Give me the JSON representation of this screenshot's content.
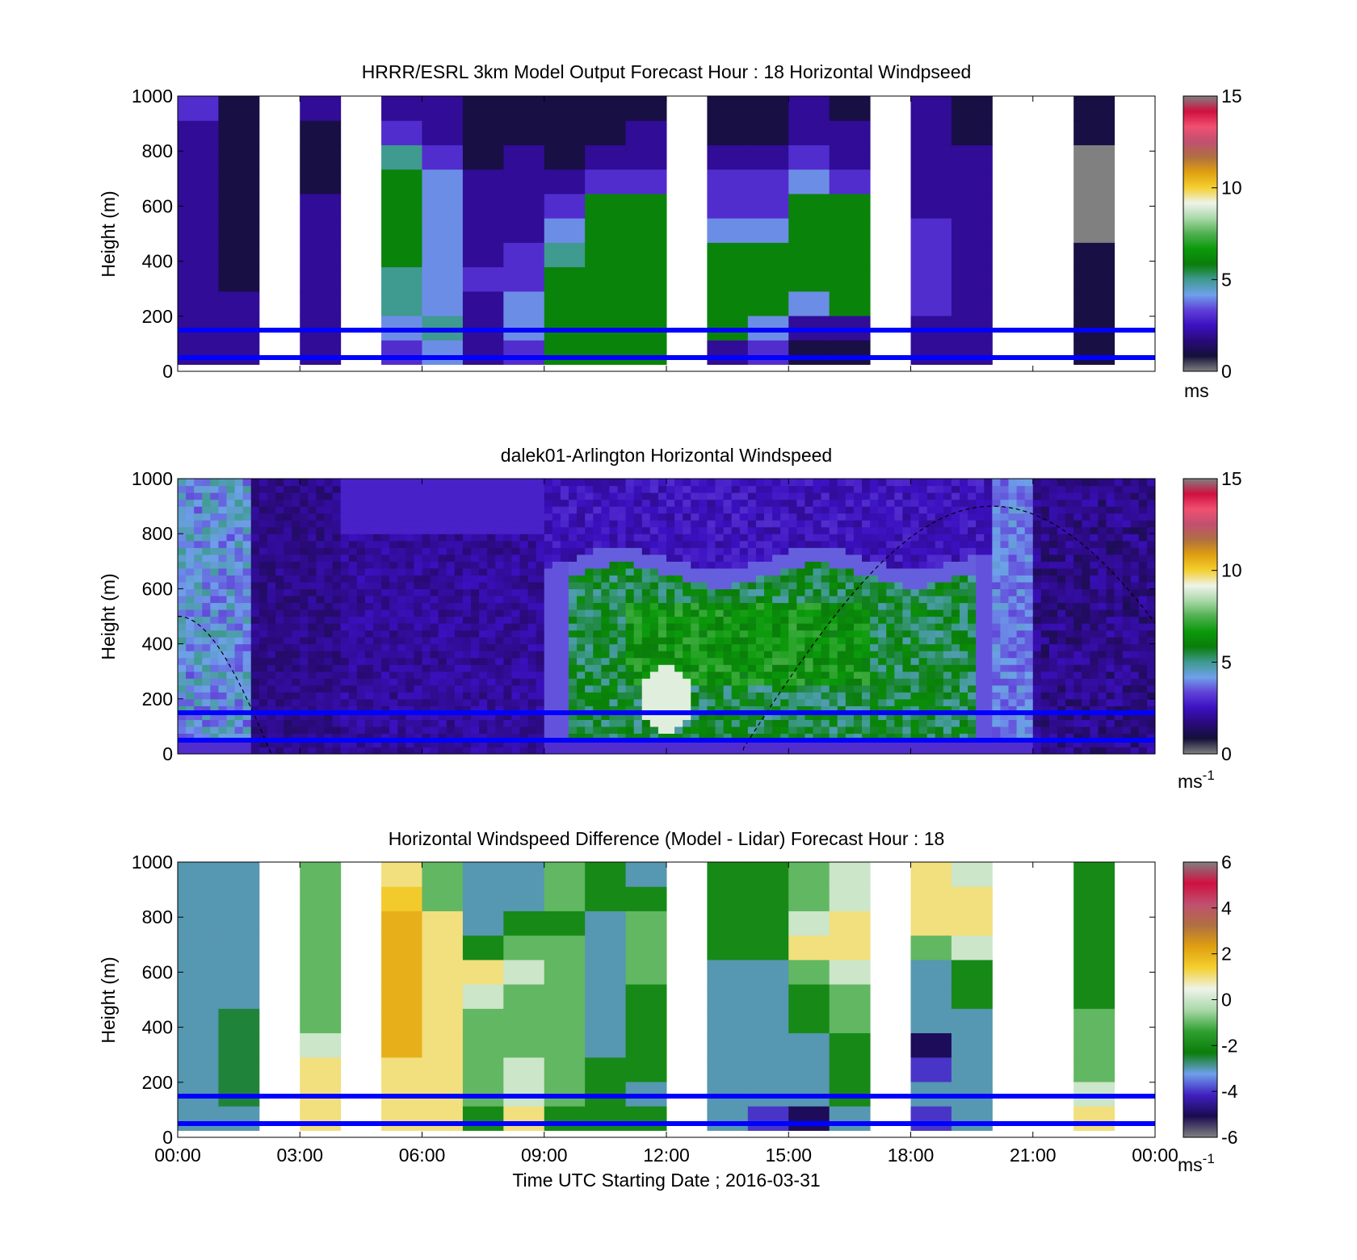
{
  "colors": {
    "wind_colormap": [
      "#808080",
      "#131038",
      "#2a0a7a",
      "#3b10c0",
      "#6040d8",
      "#6fa0ea",
      "#3f9a90",
      "#0a7d0a",
      "#0b9a0b",
      "#50b050",
      "#a8d8a8",
      "#eef3ea",
      "#f4d030",
      "#e0a010",
      "#b07040",
      "#c05070",
      "#f05070",
      "#d01040",
      "#808080"
    ],
    "diff_colormap": [
      "#808080",
      "#1a0a50",
      "#4020c0",
      "#6fa0ea",
      "#0a7d0a",
      "#30a030",
      "#a8d8a8",
      "#eef3ea",
      "#f4d030",
      "#e0a010",
      "#b07040",
      "#c05070",
      "#d01040",
      "#808080"
    ],
    "reference_line": "#0000ff",
    "missing_data": "#808080"
  },
  "x_axis": {
    "ticks": [
      "00:00",
      "03:00",
      "06:00",
      "09:00",
      "12:00",
      "15:00",
      "18:00",
      "21:00",
      "00:00"
    ],
    "label": "Time UTC  Starting Date ; 2016-03-31",
    "range_hours": [
      0,
      24
    ]
  },
  "chart_data": [
    {
      "type": "heatmap",
      "title": "HRRR/ESRL 3km Model Output   Forecast Hour : 18 Horizontal Windpseed",
      "ylabel": "Height (m)",
      "ylim": [
        0,
        1000
      ],
      "yticks": [
        "0",
        "200",
        "400",
        "600",
        "800",
        "1000"
      ],
      "colorbar": {
        "range": [
          0,
          15
        ],
        "ticks": [
          "0",
          "5",
          "10",
          "15"
        ],
        "unit": "ms"
      },
      "reference_lines_height_m": [
        150,
        50
      ],
      "hourly_columns": [
        {
          "hour": 0,
          "values": [
            2,
            2,
            2,
            2,
            2,
            2,
            2,
            2,
            2,
            2,
            3
          ]
        },
        {
          "hour": 1,
          "values": [
            2,
            2,
            2,
            1,
            1,
            1,
            1,
            1,
            1,
            1,
            1
          ]
        },
        {
          "hour": 2,
          "values": null
        },
        {
          "hour": 3,
          "values": [
            2,
            2,
            2,
            2,
            2,
            2,
            2,
            1,
            1,
            1,
            2
          ]
        },
        {
          "hour": 4,
          "values": null
        },
        {
          "hour": 5,
          "values": [
            3,
            4,
            5,
            5,
            6,
            6,
            6,
            6,
            5,
            3,
            2
          ]
        },
        {
          "hour": 6,
          "values": [
            4,
            5,
            4,
            4,
            4,
            4,
            4,
            4,
            3,
            2,
            2
          ]
        },
        {
          "hour": 7,
          "values": [
            2,
            2,
            2,
            3,
            2,
            2,
            2,
            2,
            1,
            1,
            1
          ]
        },
        {
          "hour": 8,
          "values": [
            3,
            4,
            4,
            3,
            3,
            2,
            2,
            2,
            2,
            1,
            1
          ]
        },
        {
          "hour": 9,
          "values": [
            6,
            6,
            6,
            6,
            5,
            4,
            3,
            2,
            1,
            1,
            1
          ]
        },
        {
          "hour": 10,
          "values": [
            6,
            6,
            6,
            6,
            6,
            6,
            6,
            3,
            2,
            1,
            1
          ]
        },
        {
          "hour": 11,
          "values": [
            6,
            6,
            6,
            6,
            6,
            6,
            6,
            3,
            2,
            2,
            1
          ]
        },
        {
          "hour": 12,
          "values": null
        },
        {
          "hour": 13,
          "values": [
            2,
            6,
            6,
            6,
            6,
            4,
            3,
            3,
            2,
            1,
            1
          ]
        },
        {
          "hour": 14,
          "values": [
            3,
            4,
            6,
            6,
            6,
            4,
            3,
            3,
            2,
            1,
            1
          ]
        },
        {
          "hour": 15,
          "values": [
            1,
            2,
            4,
            6,
            6,
            6,
            6,
            4,
            3,
            2,
            2
          ]
        },
        {
          "hour": 16,
          "values": [
            1,
            2,
            6,
            6,
            6,
            6,
            6,
            3,
            2,
            2,
            1
          ]
        },
        {
          "hour": 17,
          "values": null
        },
        {
          "hour": 18,
          "values": [
            2,
            2,
            3,
            3,
            3,
            3,
            2,
            2,
            2,
            2,
            2
          ]
        },
        {
          "hour": 19,
          "values": [
            2,
            2,
            2,
            2,
            2,
            2,
            2,
            2,
            2,
            1,
            1
          ]
        },
        {
          "hour": 20,
          "values": null
        },
        {
          "hour": 21,
          "values": null
        },
        {
          "hour": 22,
          "values": [
            1,
            1,
            1,
            1,
            1,
            0,
            0,
            0,
            0,
            1,
            1
          ]
        },
        {
          "hour": 23,
          "values": null
        }
      ]
    },
    {
      "type": "heatmap",
      "title": "dalek01-Arlington  Horizontal Windspeed",
      "ylabel": "Height (m)",
      "ylim": [
        0,
        1000
      ],
      "yticks": [
        "0",
        "200",
        "400",
        "600",
        "800",
        "1000"
      ],
      "colorbar": {
        "range": [
          0,
          15
        ],
        "ticks": [
          "0",
          "5",
          "10",
          "15"
        ],
        "unit": "ms-1"
      },
      "reference_lines_height_m": [
        150,
        50
      ],
      "wind_maximum": {
        "hour": 12,
        "height_m": 200,
        "value": 9
      },
      "dashed_curve_crossings_hours": [
        2.3,
        13.8
      ],
      "dashed_curve_peak": {
        "hour": 20,
        "height_m": 900
      }
    },
    {
      "type": "heatmap",
      "title": "Horizontal Windspeed Difference (Model - Lidar) Forecast Hour : 18",
      "ylabel": "Height (m)",
      "ylim": [
        0,
        1000
      ],
      "yticks": [
        "0",
        "200",
        "400",
        "600",
        "800",
        "1000"
      ],
      "colorbar": {
        "range": [
          -6,
          6
        ],
        "ticks": [
          "-6",
          "-4",
          "-2",
          "0",
          "2",
          "4",
          "6"
        ],
        "unit": "ms-1"
      },
      "reference_lines_height_m": [
        150,
        50
      ],
      "hourly_columns": [
        {
          "hour": 0,
          "values": [
            -3,
            -3,
            -3,
            -3,
            -3,
            -3,
            -3,
            -3,
            -3,
            -3,
            -3
          ]
        },
        {
          "hour": 1,
          "values": [
            -3,
            -2.5,
            -2.5,
            -2.5,
            -2.5,
            -3,
            -3,
            -3,
            -3,
            -3,
            -3
          ]
        },
        {
          "hour": 2,
          "values": null
        },
        {
          "hour": 3,
          "values": [
            1,
            1,
            1,
            0,
            -1,
            -1,
            -1,
            -1,
            -1,
            -1,
            -1
          ]
        },
        {
          "hour": 4,
          "values": null
        },
        {
          "hour": 5,
          "values": [
            1,
            1,
            1,
            2,
            2,
            2,
            2,
            2,
            2,
            1.5,
            1
          ]
        },
        {
          "hour": 6,
          "values": [
            1,
            1,
            1,
            1,
            1,
            1,
            1,
            1,
            1,
            -1,
            -1
          ]
        },
        {
          "hour": 7,
          "values": [
            -2,
            -1,
            -1,
            -1,
            -1,
            0,
            1,
            -2,
            -3,
            -3,
            -3
          ]
        },
        {
          "hour": 8,
          "values": [
            1,
            0,
            0,
            -1,
            -1,
            -1,
            0,
            -1,
            -2,
            -3,
            -3
          ]
        },
        {
          "hour": 9,
          "values": [
            -2,
            -1,
            -1,
            -1,
            -1,
            -1,
            -1,
            -1,
            -2,
            -1,
            -1
          ]
        },
        {
          "hour": 10,
          "values": [
            -2,
            -2,
            -2,
            -3,
            -3,
            -3,
            -3,
            -3,
            -3,
            -2,
            -2
          ]
        },
        {
          "hour": 11,
          "values": [
            -2,
            -3,
            -2,
            -2,
            -2,
            -2,
            -1,
            -1,
            -1,
            -2,
            -3
          ]
        },
        {
          "hour": 12,
          "values": null
        },
        {
          "hour": 13,
          "values": [
            -3,
            -3,
            -3,
            -3,
            -3,
            -3,
            -3,
            -2,
            -2,
            -2,
            -2
          ]
        },
        {
          "hour": 14,
          "values": [
            -4,
            -3,
            -3,
            -3,
            -3,
            -3,
            -3,
            -2,
            -2,
            -2,
            -2
          ]
        },
        {
          "hour": 15,
          "values": [
            -5,
            -3,
            -3,
            -3,
            -2,
            -2,
            -1,
            1,
            0,
            -1,
            -1
          ]
        },
        {
          "hour": 16,
          "values": [
            -3,
            -2,
            -2,
            -2,
            -1,
            -1,
            0,
            1,
            1,
            0,
            0
          ]
        },
        {
          "hour": 17,
          "values": null
        },
        {
          "hour": 18,
          "values": [
            -4,
            -3,
            -4,
            -5,
            -3,
            -3,
            -3,
            -1,
            1,
            1,
            1
          ]
        },
        {
          "hour": 19,
          "values": [
            -3,
            -3,
            -3,
            -3,
            -3,
            -2,
            -2,
            0,
            1,
            1,
            0
          ]
        },
        {
          "hour": 20,
          "values": null
        },
        {
          "hour": 21,
          "values": null
        },
        {
          "hour": 22,
          "values": [
            1,
            0,
            -1,
            -1,
            -1,
            -2,
            -2,
            -2,
            -2,
            -2,
            -2
          ]
        },
        {
          "hour": 23,
          "values": null
        }
      ]
    }
  ]
}
